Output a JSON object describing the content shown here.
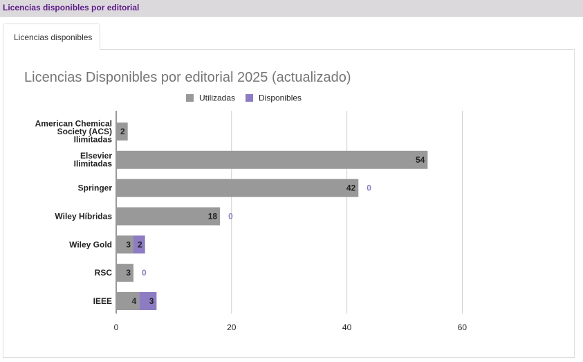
{
  "panel": {
    "title": "Licencias disponibles por editorial"
  },
  "tabs": [
    {
      "label": "Licencias disponibles",
      "active": true
    }
  ],
  "colors": {
    "used": "#999999",
    "available": "#8e7cc3",
    "title": "#757575"
  },
  "chart_data": {
    "type": "bar",
    "orientation": "horizontal",
    "stacked": true,
    "title": "Licencias Disponibles por editorial 2025 (actualizado)",
    "legend_position": "top",
    "categories": [
      [
        "American Chemical",
        "Society (ACS)",
        "Ilimitadas"
      ],
      [
        "Elsevier",
        "Ilimitadas"
      ],
      [
        "Springer"
      ],
      [
        "Wiley Híbridas"
      ],
      [
        "Wiley Gold"
      ],
      [
        "RSC"
      ],
      [
        "IEEE"
      ]
    ],
    "series": [
      {
        "name": "Utilizadas",
        "color": "#999999",
        "values": [
          2,
          54,
          42,
          18,
          3,
          3,
          4
        ],
        "labels": [
          "2",
          "54",
          "42",
          "18",
          "3",
          "3",
          "4"
        ]
      },
      {
        "name": "Disponibles",
        "color": "#8e7cc3",
        "values": [
          null,
          null,
          0,
          0,
          2,
          0,
          3
        ],
        "labels": [
          null,
          null,
          "0",
          "0",
          "2",
          "0",
          "3"
        ]
      }
    ],
    "xlim": [
      0,
      60
    ],
    "xticks": [
      0,
      20,
      40,
      60
    ],
    "grid": true
  }
}
